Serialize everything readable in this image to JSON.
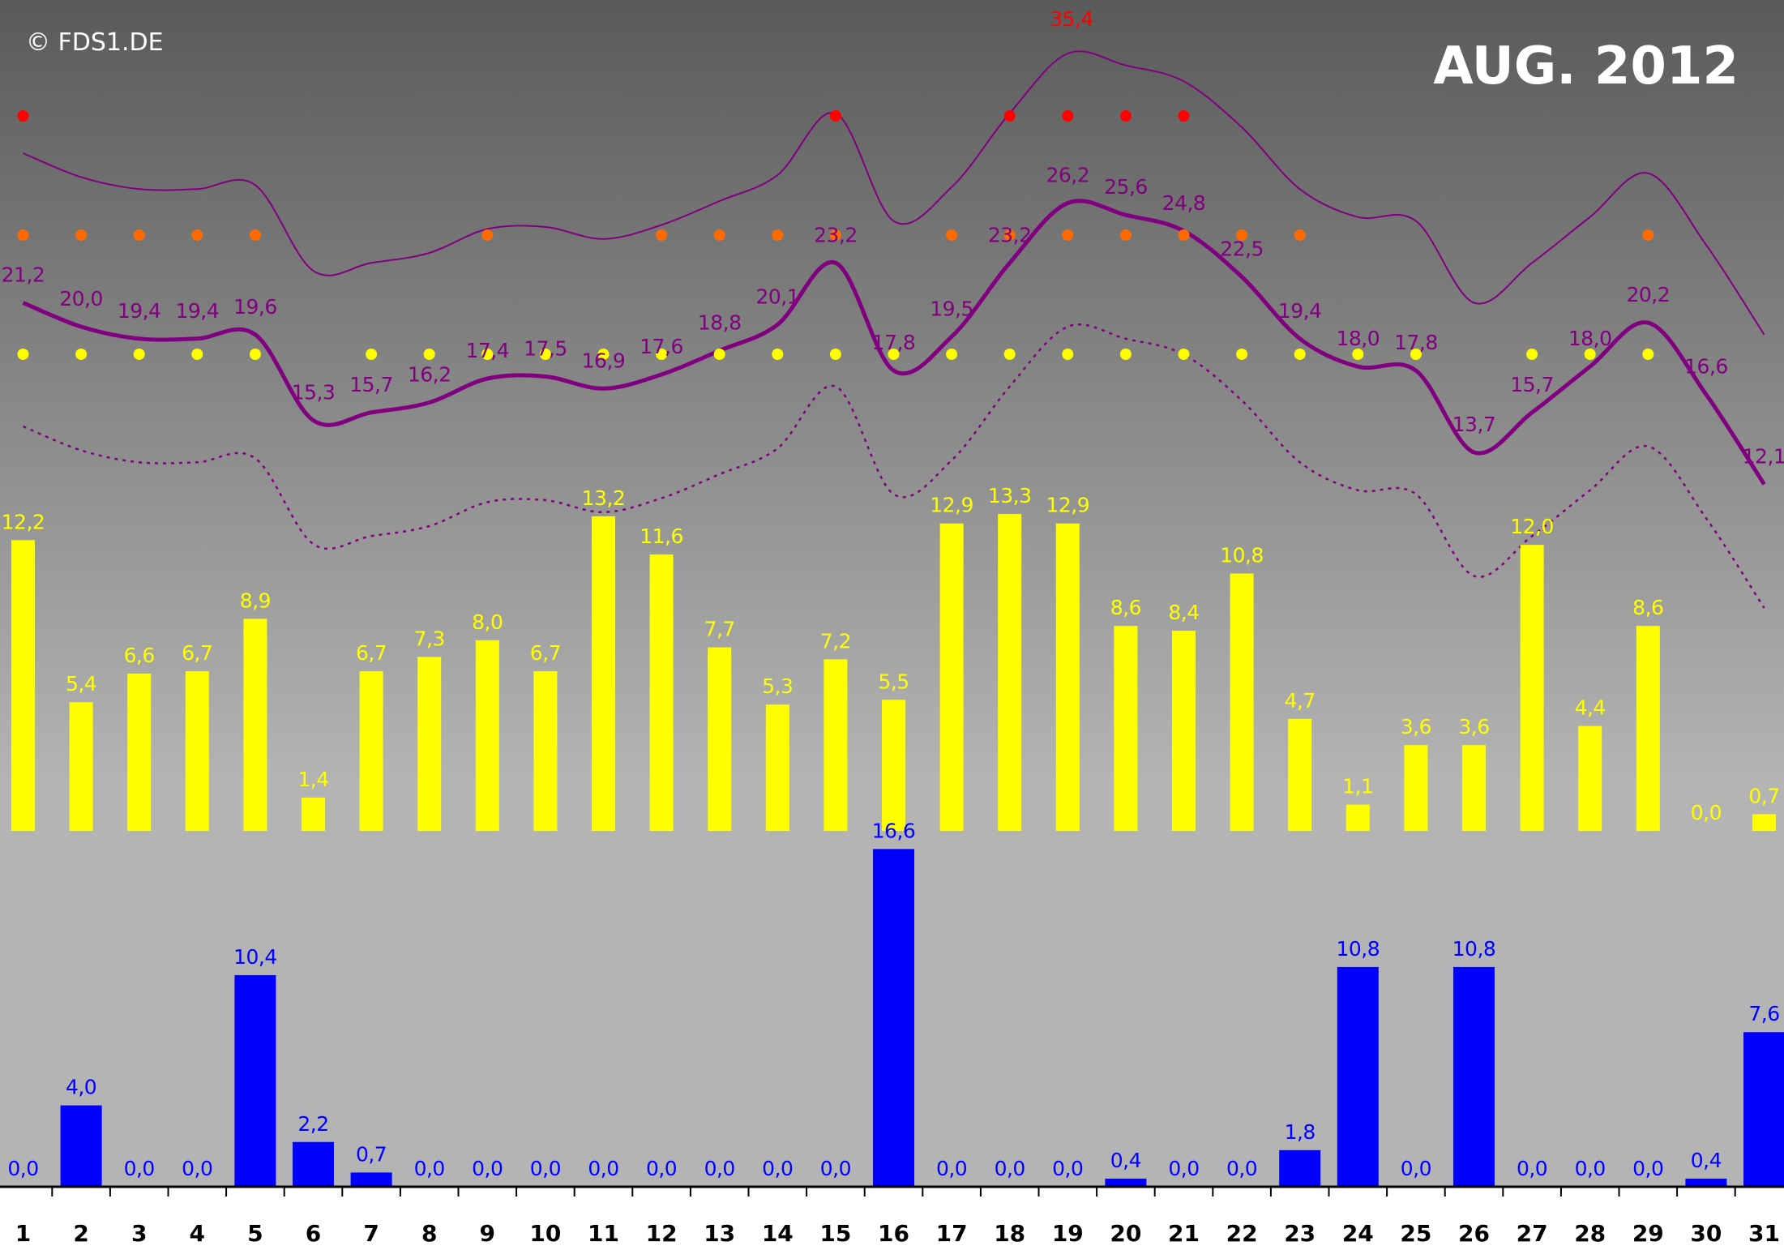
{
  "copyright": "© FDS1.DE",
  "title": "AUG. 2012",
  "colors": {
    "background_top": "#5a5a5a",
    "background_bottom": "#c0c0c0",
    "max_temp": "#800080",
    "sunshine": "#ffff00",
    "precipitation": "#0000ff",
    "hot_day": "#ff0000",
    "summer_day": "#ff6a00",
    "warm_day": "#ffff00"
  },
  "chart_data": {
    "type": "bar",
    "days": [
      "1",
      "2",
      "3",
      "4",
      "5",
      "6",
      "7",
      "8",
      "9",
      "10",
      "11",
      "12",
      "13",
      "14",
      "15",
      "16",
      "17",
      "18",
      "19",
      "20",
      "21",
      "22",
      "23",
      "24",
      "25",
      "26",
      "27",
      "28",
      "29",
      "30",
      "31"
    ],
    "max_temperature": {
      "values": [
        21.2,
        20.0,
        19.4,
        19.4,
        19.6,
        15.3,
        15.7,
        16.2,
        17.4,
        17.5,
        16.9,
        17.6,
        18.8,
        20.1,
        23.2,
        17.8,
        19.5,
        23.2,
        26.2,
        25.6,
        24.8,
        22.5,
        19.4,
        18.0,
        17.8,
        13.7,
        15.7,
        18.0,
        20.2,
        16.6,
        12.1
      ],
      "labels": [
        "21,2",
        "20,0",
        "19,4",
        "19,4",
        "19,6",
        "15,3",
        "15,7",
        "16,2",
        "17,4",
        "17,5",
        "16,9",
        "17,6",
        "18,8",
        "20,1",
        "23,2",
        "17,8",
        "19,5",
        "23,2",
        "26,2",
        "25,6",
        "24,8",
        "22,5",
        "19,4",
        "18,0",
        "17,8",
        "13,7",
        "15,7",
        "18,0",
        "20,2",
        "16,6",
        "12,1"
      ]
    },
    "record_label": "35,4",
    "marker_rows": {
      "hot_days": [
        1,
        15,
        18,
        19,
        20,
        21
      ],
      "summer_days": [
        1,
        2,
        3,
        4,
        5,
        9,
        12,
        13,
        14,
        15,
        17,
        18,
        19,
        20,
        21,
        22,
        23,
        29
      ],
      "warm_days": [
        1,
        2,
        3,
        4,
        5,
        7,
        8,
        9,
        10,
        11,
        12,
        13,
        14,
        15,
        16,
        17,
        18,
        19,
        20,
        21,
        22,
        23,
        24,
        25,
        27,
        28,
        29
      ]
    },
    "sunshine": {
      "values": [
        12.2,
        5.4,
        6.6,
        6.7,
        8.9,
        1.4,
        6.7,
        7.3,
        8.0,
        6.7,
        13.2,
        11.6,
        7.7,
        5.3,
        7.2,
        5.5,
        12.9,
        13.3,
        12.9,
        8.6,
        8.4,
        10.8,
        4.7,
        1.1,
        3.6,
        3.6,
        12.0,
        4.4,
        8.6,
        0.0,
        0.7
      ],
      "labels": [
        "12,2",
        "5,4",
        "6,6",
        "6,7",
        "8,9",
        "1,4",
        "6,7",
        "7,3",
        "8,0",
        "6,7",
        "13,2",
        "11,6",
        "7,7",
        "5,3",
        "7,2",
        "5,5",
        "12,9",
        "13,3",
        "12,9",
        "8,6",
        "8,4",
        "10,8",
        "4,7",
        "1,1",
        "3,6",
        "3,6",
        "12,0",
        "4,4",
        "8,6",
        "0,0",
        "0,7"
      ]
    },
    "precipitation": {
      "values": [
        0.0,
        4.0,
        0.0,
        0.0,
        10.4,
        2.2,
        0.7,
        0.0,
        0.0,
        0.0,
        0.0,
        0.0,
        0.0,
        0.0,
        0.0,
        16.6,
        0.0,
        0.0,
        0.0,
        0.4,
        0.0,
        0.0,
        1.8,
        10.8,
        0.0,
        10.8,
        0.0,
        0.0,
        0.0,
        0.4,
        7.6
      ],
      "labels": [
        "0,0",
        "4,0",
        "0,0",
        "0,0",
        "10,4",
        "2,2",
        "0,7",
        "0,0",
        "0,0",
        "0,0",
        "0,0",
        "0,0",
        "0,0",
        "0,0",
        "0,0",
        "16,6",
        "0,0",
        "0,0",
        "0,0",
        "0,4",
        "0,0",
        "0,0",
        "1,8",
        "10,8",
        "0,0",
        "10,8",
        "0,0",
        "0,0",
        "0,0",
        "0,4",
        "7,6"
      ]
    }
  }
}
